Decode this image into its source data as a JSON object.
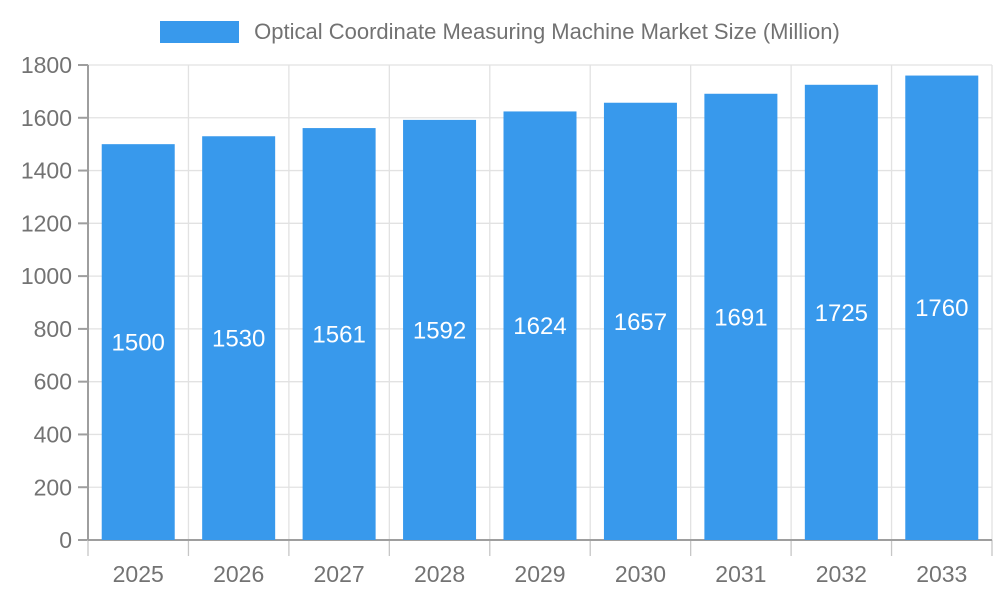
{
  "chart_data": {
    "type": "bar",
    "title": "Optical Coordinate Measuring Machine Market Size (Million)",
    "categories": [
      "2025",
      "2026",
      "2027",
      "2028",
      "2029",
      "2030",
      "2031",
      "2032",
      "2033"
    ],
    "values": [
      1500,
      1530,
      1561,
      1592,
      1624,
      1657,
      1691,
      1725,
      1760
    ],
    "xlabel": "",
    "ylabel": "",
    "ylim": [
      0,
      1800
    ],
    "ytick_step": 200,
    "yticks": [
      0,
      200,
      400,
      600,
      800,
      1000,
      1200,
      1400,
      1600,
      1800
    ],
    "grid": true,
    "legend_position": "top",
    "bar_color": "#3899ec",
    "value_label_color": "#ffffff",
    "axis_text_color": "#737373",
    "title_color": "#727272",
    "grid_color": "#e2e2e2",
    "axis_line_color": "#9e9e9e",
    "minor_tick_color": "#c6c6c6"
  }
}
